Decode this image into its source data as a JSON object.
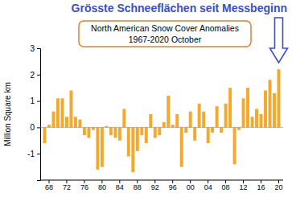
{
  "chart_data": {
    "type": "bar",
    "title": "Grösste Schneeflächen seit Messbeginn",
    "subtitle": "North American Snow Cover Anomalies",
    "annotations": [
      "1967-2020 October"
    ],
    "y_label": "Million Square km",
    "categories": [
      null,
      "68",
      null,
      null,
      null,
      "72",
      null,
      null,
      null,
      "76",
      null,
      null,
      null,
      "80",
      null,
      null,
      null,
      "84",
      null,
      null,
      null,
      "88",
      null,
      null,
      null,
      "92",
      null,
      null,
      null,
      "96",
      null,
      null,
      null,
      "00",
      null,
      null,
      null,
      "04",
      null,
      null,
      null,
      "08",
      null,
      null,
      null,
      "12",
      null,
      null,
      null,
      "16",
      null,
      null,
      null,
      "20"
    ],
    "values": [
      -0.6,
      0.1,
      0.6,
      1.1,
      1.1,
      0.4,
      1.4,
      0.4,
      0.3,
      -0.3,
      -0.4,
      -0.1,
      -1.6,
      -1.5,
      0.05,
      -0.3,
      -0.4,
      -0.5,
      0.7,
      -1.1,
      -1.7,
      -0.9,
      -0.3,
      -0.6,
      0.5,
      -0.4,
      -0.3,
      0.2,
      1.2,
      0.1,
      0.5,
      -1.5,
      -0.2,
      0.6,
      -0.5,
      0.9,
      0.6,
      -0.6,
      -0.2,
      0.8,
      -0.2,
      0.9,
      1.5,
      -1.4,
      -0.1,
      1.1,
      1.5,
      0.4,
      0.7,
      0.5,
      1.4,
      1.8,
      1.3,
      2.2
    ],
    "color": "#f4a82c",
    "ylim": [
      -2,
      3
    ],
    "yticks": [
      -1,
      0,
      1,
      2,
      3
    ],
    "grid": false
  }
}
